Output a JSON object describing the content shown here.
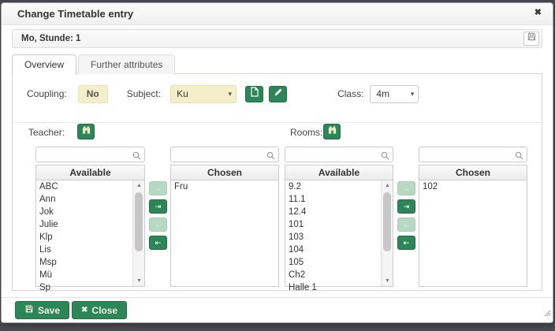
{
  "window": {
    "title": "Change Timetable entry",
    "subheader": "Mo, Stunde: 1"
  },
  "icons": {
    "close": "✖",
    "dropdown_arrow": "▾",
    "scroll_up": "▲",
    "scroll_down": "▼"
  },
  "tabs": {
    "overview": "Overview",
    "further": "Further attributes"
  },
  "form": {
    "coupling_label": "Coupling:",
    "coupling_value": "No",
    "subject_label": "Subject:",
    "subject_value": "Ku",
    "class_label": "Class:",
    "class_value": "4m"
  },
  "teacher": {
    "label": "Teacher:",
    "available_header": "Available",
    "chosen_header": "Chosen",
    "available": [
      "ABC",
      "Ann",
      "Jok",
      "Julie",
      "Klp",
      "Lis",
      "Msp",
      "Mü",
      "Sp"
    ],
    "chosen": [
      "Fru"
    ]
  },
  "rooms": {
    "label": "Rooms:",
    "available_header": "Available",
    "chosen_header": "Chosen",
    "available": [
      "9.2",
      "11.1",
      "12.4",
      "101",
      "103",
      "104",
      "105",
      "Ch2",
      "Halle 1"
    ],
    "chosen": [
      "102"
    ]
  },
  "transfer": {
    "move_right": "→",
    "move_all_right": "⇥",
    "move_left": "←",
    "move_all_left": "⇤"
  },
  "footer": {
    "save": "Save",
    "close": "Close"
  },
  "colors": {
    "primary_green": "#2d8657",
    "light_green": "#b7d9c4",
    "beige": "#f5eecb",
    "title_text": "#333333"
  }
}
